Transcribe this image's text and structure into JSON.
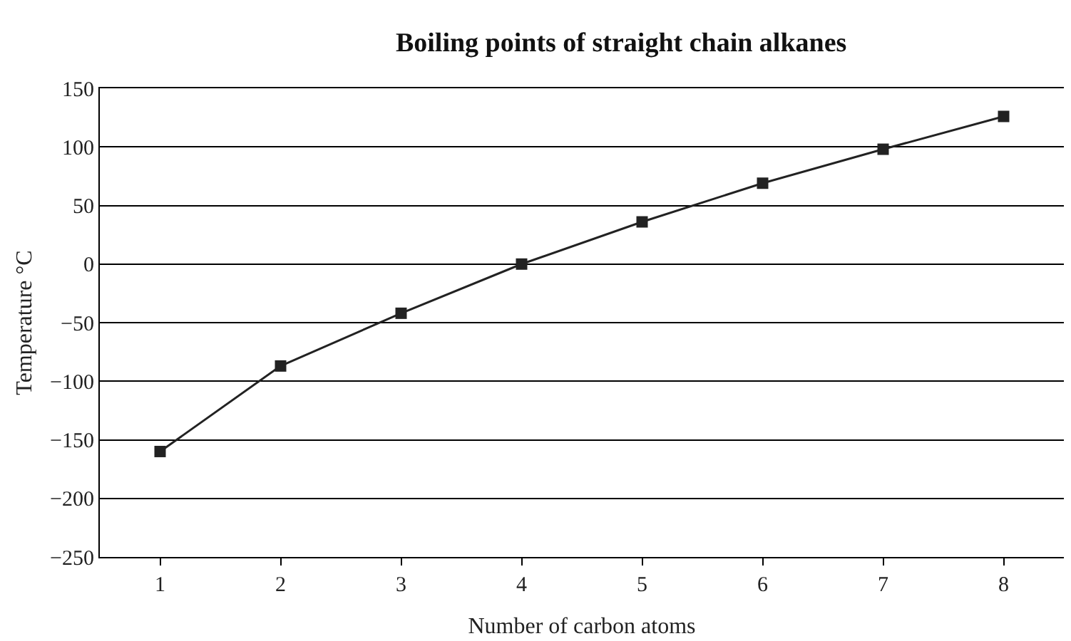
{
  "chart_data": {
    "type": "line",
    "title": "Boiling points of straight chain alkanes",
    "xlabel": "Number of carbon atoms",
    "ylabel": "Temperature °C",
    "x": [
      1,
      2,
      3,
      4,
      5,
      6,
      7,
      8
    ],
    "series": [
      {
        "color": "#222222",
        "values": [
          -160,
          -87,
          -42,
          0,
          36,
          69,
          98,
          126
        ]
      }
    ],
    "xlim": [
      0.5,
      8.5
    ],
    "xticks": [
      1,
      2,
      3,
      4,
      5,
      6,
      7,
      8
    ],
    "ylim": [
      -250,
      150
    ],
    "yticks": [
      {
        "value": -250,
        "label": "−250"
      },
      {
        "value": -200,
        "label": "−200"
      },
      {
        "value": -150,
        "label": "−150"
      },
      {
        "value": -100,
        "label": "−100"
      },
      {
        "value": -50,
        "label": "−50"
      },
      0,
      50,
      100,
      150
    ],
    "grid": "y",
    "marker": "square",
    "line_style": "solid"
  }
}
